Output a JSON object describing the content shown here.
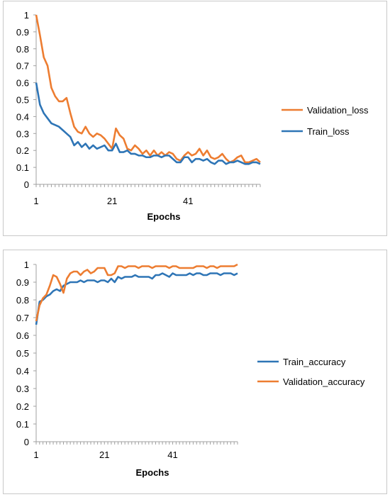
{
  "chart_data": [
    {
      "type": "line",
      "xlabel": "Epochs",
      "ylabel": "",
      "ylim": [
        0,
        1
      ],
      "yticks": [
        "0",
        "0.1",
        "0.2",
        "0.3",
        "0.4",
        "0.5",
        "0.6",
        "0.7",
        "0.8",
        "0.9",
        "1"
      ],
      "xticks": [
        "1",
        "21",
        "41"
      ],
      "xlim": [
        1,
        60
      ],
      "grid": false,
      "legend": "right",
      "series": [
        {
          "name": "Validation_loss",
          "color": "#ED7D31",
          "values": [
            1.0,
            0.88,
            0.75,
            0.7,
            0.57,
            0.52,
            0.49,
            0.49,
            0.51,
            0.42,
            0.34,
            0.31,
            0.3,
            0.34,
            0.3,
            0.28,
            0.3,
            0.29,
            0.27,
            0.24,
            0.21,
            0.33,
            0.29,
            0.27,
            0.21,
            0.2,
            0.23,
            0.21,
            0.18,
            0.2,
            0.17,
            0.2,
            0.17,
            0.19,
            0.17,
            0.19,
            0.18,
            0.15,
            0.14,
            0.17,
            0.19,
            0.17,
            0.18,
            0.21,
            0.17,
            0.2,
            0.16,
            0.15,
            0.16,
            0.18,
            0.15,
            0.13,
            0.14,
            0.16,
            0.17,
            0.13,
            0.13,
            0.14,
            0.15,
            0.13
          ]
        },
        {
          "name": "Train_loss",
          "color": "#2E75B6",
          "values": [
            0.6,
            0.47,
            0.42,
            0.39,
            0.36,
            0.35,
            0.34,
            0.32,
            0.3,
            0.28,
            0.23,
            0.25,
            0.22,
            0.24,
            0.21,
            0.23,
            0.21,
            0.22,
            0.23,
            0.2,
            0.2,
            0.24,
            0.19,
            0.19,
            0.2,
            0.18,
            0.18,
            0.17,
            0.17,
            0.16,
            0.16,
            0.17,
            0.17,
            0.16,
            0.17,
            0.17,
            0.15,
            0.13,
            0.13,
            0.16,
            0.16,
            0.13,
            0.15,
            0.15,
            0.14,
            0.15,
            0.13,
            0.12,
            0.14,
            0.14,
            0.12,
            0.13,
            0.13,
            0.14,
            0.13,
            0.12,
            0.12,
            0.13,
            0.13,
            0.12
          ]
        }
      ]
    },
    {
      "type": "line",
      "xlabel": "Epochs",
      "ylabel": "",
      "ylim": [
        0,
        1
      ],
      "yticks": [
        "0",
        "0.1",
        "0.2",
        "0.3",
        "0.4",
        "0.5",
        "0.6",
        "0.7",
        "0.8",
        "0.9",
        "1"
      ],
      "xticks": [
        "1",
        "21",
        "41"
      ],
      "xlim": [
        1,
        60
      ],
      "grid": false,
      "legend": "right",
      "series": [
        {
          "name": "Train_accuracy",
          "color": "#2E75B6",
          "values": [
            0.66,
            0.79,
            0.8,
            0.82,
            0.83,
            0.85,
            0.86,
            0.85,
            0.88,
            0.89,
            0.9,
            0.9,
            0.9,
            0.91,
            0.9,
            0.91,
            0.91,
            0.91,
            0.9,
            0.91,
            0.91,
            0.9,
            0.92,
            0.9,
            0.93,
            0.92,
            0.93,
            0.93,
            0.93,
            0.94,
            0.93,
            0.93,
            0.93,
            0.93,
            0.92,
            0.94,
            0.94,
            0.95,
            0.94,
            0.93,
            0.95,
            0.94,
            0.94,
            0.94,
            0.94,
            0.95,
            0.94,
            0.95,
            0.95,
            0.94,
            0.94,
            0.95,
            0.95,
            0.95,
            0.94,
            0.95,
            0.95,
            0.95,
            0.94,
            0.95
          ]
        },
        {
          "name": "Validation_accuracy",
          "color": "#ED7D31",
          "values": [
            0.68,
            0.77,
            0.81,
            0.83,
            0.88,
            0.94,
            0.93,
            0.89,
            0.84,
            0.92,
            0.95,
            0.96,
            0.96,
            0.94,
            0.96,
            0.97,
            0.95,
            0.96,
            0.98,
            0.98,
            0.98,
            0.94,
            0.94,
            0.95,
            0.99,
            0.99,
            0.98,
            0.99,
            0.99,
            0.99,
            0.98,
            0.99,
            0.99,
            0.99,
            0.98,
            0.99,
            0.99,
            0.99,
            0.99,
            0.98,
            0.99,
            0.99,
            0.98,
            0.98,
            0.98,
            0.98,
            0.98,
            0.99,
            0.99,
            0.99,
            0.98,
            0.99,
            0.99,
            0.98,
            0.99,
            0.99,
            0.99,
            0.99,
            0.99,
            1.0
          ]
        }
      ]
    }
  ]
}
